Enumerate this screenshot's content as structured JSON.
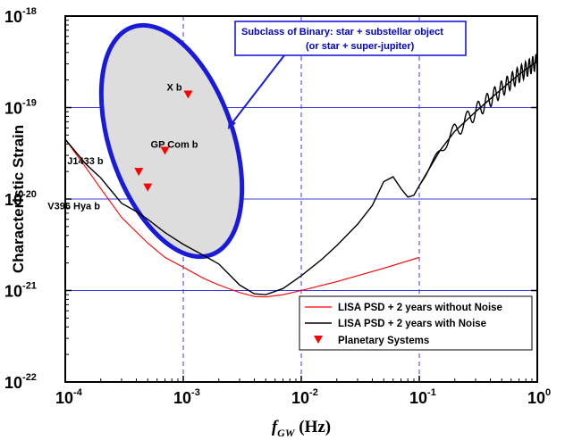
{
  "chart_data": {
    "type": "line",
    "title": "",
    "xlabel": {
      "main": "f",
      "sub": "GW",
      "unit": " (Hz)"
    },
    "ylabel": "Characteristic Strain",
    "x_scale": "log",
    "y_scale": "log",
    "xlim": [
      0.0001,
      1
    ],
    "ylim": [
      1e-22,
      1e-18
    ],
    "grid": true,
    "x_ticks": [
      {
        "value": 0.0001,
        "base": "10",
        "exp": "-4"
      },
      {
        "value": 0.001,
        "base": "10",
        "exp": "-3"
      },
      {
        "value": 0.01,
        "base": "10",
        "exp": "-2"
      },
      {
        "value": 0.1,
        "base": "10",
        "exp": "-1"
      },
      {
        "value": 1,
        "base": "10",
        "exp": "0"
      }
    ],
    "y_ticks": [
      {
        "value": 1e-22,
        "base": "10",
        "exp": "-22"
      },
      {
        "value": 1e-21,
        "base": "10",
        "exp": "-21"
      },
      {
        "value": 1e-20,
        "base": "10",
        "exp": "-20"
      },
      {
        "value": 1e-19,
        "base": "10",
        "exp": "-19"
      },
      {
        "value": 1e-18,
        "base": "10",
        "exp": "-18"
      }
    ],
    "series": [
      {
        "name": "LISA PSD + 2 years without Noise",
        "color": "#ff0000",
        "style": "line",
        "points": [
          [
            0.0001,
            4.5e-20
          ],
          [
            0.00015,
            2.2e-20
          ],
          [
            0.0002,
            1.3e-20
          ],
          [
            0.0003,
            6.3e-21
          ],
          [
            0.0005,
            3.3e-21
          ],
          [
            0.0007,
            2.3e-21
          ],
          [
            0.001,
            1.8e-21
          ],
          [
            0.0015,
            1.35e-21
          ],
          [
            0.002,
            1.15e-21
          ],
          [
            0.003,
            9.5e-22
          ],
          [
            0.004,
            8.6e-22
          ],
          [
            0.005,
            8.5e-22
          ],
          [
            0.007,
            9e-22
          ],
          [
            0.01,
            1e-21
          ],
          [
            0.02,
            1.25e-21
          ],
          [
            0.05,
            1.75e-21
          ],
          [
            0.1,
            2.3e-21
          ]
        ]
      },
      {
        "name": "LISA PSD + 2 years with Noise",
        "color": "#000000",
        "style": "line",
        "points": [
          [
            0.0001,
            4.5e-20
          ],
          [
            0.00015,
            2.4e-20
          ],
          [
            0.0002,
            1.7e-20
          ],
          [
            0.0003,
            9e-21
          ],
          [
            0.0004,
            7.3e-21
          ],
          [
            0.0005,
            6e-21
          ],
          [
            0.0007,
            4.3e-21
          ],
          [
            0.001,
            3.2e-21
          ],
          [
            0.0015,
            2.4e-21
          ],
          [
            0.002,
            1.95e-21
          ],
          [
            0.003,
            1.15e-21
          ],
          [
            0.004,
            9.2e-22
          ],
          [
            0.005,
            9e-22
          ],
          [
            0.007,
            1.05e-21
          ],
          [
            0.01,
            1.45e-21
          ],
          [
            0.015,
            2.2e-21
          ],
          [
            0.02,
            3.1e-21
          ],
          [
            0.03,
            5.3e-21
          ],
          [
            0.04,
            8.5e-21
          ],
          [
            0.05,
            1.55e-20
          ],
          [
            0.06,
            1.75e-20
          ],
          [
            0.07,
            1.3e-20
          ],
          [
            0.08,
            1.05e-20
          ],
          [
            0.09,
            1.1e-20
          ],
          [
            0.1,
            1.4e-20
          ],
          [
            0.15,
            3.4e-20
          ],
          [
            0.2,
            5.5e-20
          ],
          [
            0.3,
            9e-20
          ],
          [
            0.5,
            1.6e-19
          ],
          [
            0.7,
            2.3e-19
          ],
          [
            1,
            3.2e-19
          ]
        ]
      },
      {
        "name": "Planetary Systems",
        "color": "#ff0000",
        "style": "marker",
        "points": [
          {
            "x": 0.0011,
            "y": 1.4e-19,
            "label": "X b"
          },
          {
            "x": 0.0007,
            "y": 3.4e-20,
            "label": "GP Com b"
          },
          {
            "x": 0.00042,
            "y": 2e-20,
            "label": "J1433 b"
          },
          {
            "x": 0.0005,
            "y": 1.35e-20,
            "label": "V396 Hya b"
          }
        ]
      }
    ],
    "ellipse_region": {
      "fill": "#dddddd",
      "stroke": "#1a1adb",
      "callout_lines": [
        "Subclass of Binary: star + substellar object",
        "(or star + super-jupiter)"
      ]
    },
    "legend": {
      "position": "bottom-right",
      "entries": [
        "LISA PSD + 2 years without Noise",
        "LISA PSD + 2 years with Noise",
        "Planetary Systems"
      ]
    }
  }
}
